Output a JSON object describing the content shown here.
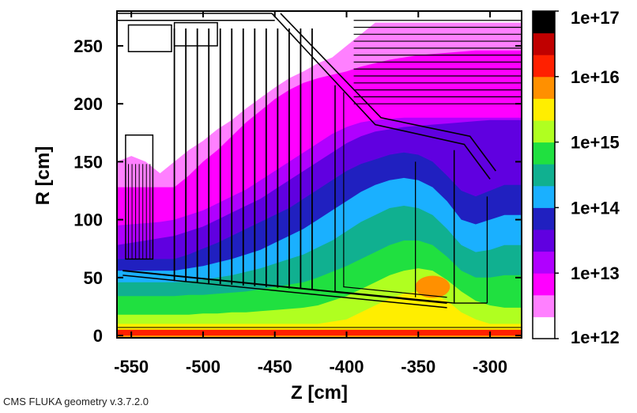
{
  "chart_data": {
    "type": "heatmap",
    "title": "",
    "xlabel": "Z [cm]",
    "ylabel": "R [cm]",
    "xlim": [
      -560,
      -278
    ],
    "ylim": [
      -2,
      280
    ],
    "x_ticks": [
      -550,
      -500,
      -450,
      -400,
      -350,
      -300
    ],
    "x_tick_labels": [
      "-550",
      "-500",
      "-450",
      "-400",
      "-350",
      "-300"
    ],
    "y_ticks": [
      0,
      50,
      100,
      150,
      200,
      250
    ],
    "y_tick_labels": [
      "0",
      "50",
      "100",
      "150",
      "200",
      "250"
    ],
    "grid": false,
    "colorbar": {
      "scale": "log",
      "range": [
        1000000000000.0,
        1e+17
      ],
      "tick_labels": [
        "1e+17",
        "1e+16",
        "1e+15",
        "1e+14",
        "1e+13",
        "1e+12"
      ],
      "colors_low_to_high": [
        "#ffffff",
        "#ff80ff",
        "#ff00ff",
        "#b000ff",
        "#6000e0",
        "#2020c0",
        "#1ab0ff",
        "#10b090",
        "#20e040",
        "#b0ff20",
        "#ffee00",
        "#ff9000",
        "#ff2000",
        "#c00000",
        "#000000"
      ]
    },
    "band_levels_low_to_high": [
      0,
      1,
      2,
      3,
      4,
      5,
      6,
      7,
      8,
      9,
      10,
      11
    ],
    "boundaries_z": [
      -560,
      -550,
      -540,
      -530,
      -520,
      -510,
      -500,
      -490,
      -480,
      -470,
      -460,
      -450,
      -440,
      -430,
      -420,
      -410,
      -400,
      -390,
      -380,
      -370,
      -360,
      -350,
      -340,
      -330,
      -320,
      -310,
      -300,
      -290,
      -278
    ],
    "contour_boundaries_R": [
      [
        150,
        155,
        150,
        140,
        150,
        160,
        168,
        178,
        186,
        196,
        205,
        214,
        222,
        228,
        235,
        240,
        250,
        260,
        270,
        270,
        270,
        270,
        270,
        270,
        270,
        270,
        270,
        270,
        270
      ],
      [
        128,
        128,
        128,
        128,
        128,
        138,
        150,
        160,
        172,
        184,
        194,
        204,
        212,
        218,
        222,
        225,
        228,
        232,
        235,
        238,
        240,
        242,
        243,
        244,
        245,
        246,
        246,
        246,
        246
      ],
      [
        95,
        96,
        97,
        98,
        100,
        104,
        108,
        114,
        120,
        126,
        134,
        142,
        150,
        158,
        166,
        174,
        180,
        184,
        186,
        187,
        188,
        188,
        188,
        188,
        188,
        188,
        188,
        188,
        188
      ],
      [
        78,
        80,
        82,
        84,
        86,
        90,
        94,
        100,
        106,
        112,
        118,
        126,
        134,
        142,
        150,
        158,
        166,
        172,
        176,
        178,
        180,
        181,
        182,
        183,
        184,
        185,
        186,
        186,
        186
      ],
      [
        66,
        66,
        66,
        66,
        66,
        70,
        75,
        80,
        86,
        92,
        98,
        104,
        110,
        118,
        126,
        134,
        142,
        148,
        152,
        156,
        158,
        156,
        150,
        138,
        125,
        120,
        125,
        130,
        130
      ],
      [
        56,
        56,
        56,
        56,
        56,
        58,
        60,
        63,
        66,
        70,
        74,
        80,
        86,
        92,
        100,
        108,
        116,
        124,
        130,
        134,
        136,
        134,
        128,
        116,
        100,
        96,
        100,
        104,
        104
      ],
      [
        46,
        46,
        46,
        46,
        46,
        47,
        48,
        50,
        52,
        55,
        58,
        62,
        66,
        70,
        76,
        82,
        90,
        98,
        104,
        110,
        112,
        110,
        104,
        92,
        78,
        72,
        74,
        78,
        78
      ],
      [
        34,
        34,
        34,
        34,
        34,
        35,
        35,
        36,
        37,
        38,
        40,
        42,
        44,
        46,
        50,
        55,
        60,
        66,
        72,
        78,
        82,
        82,
        78,
        68,
        56,
        50,
        50,
        52,
        52
      ],
      [
        18,
        18,
        18,
        18,
        18,
        18,
        19,
        19,
        20,
        20,
        21,
        22,
        23,
        24,
        26,
        30,
        34,
        40,
        46,
        52,
        56,
        58,
        56,
        48,
        38,
        30,
        26,
        24,
        24
      ],
      [
        10,
        10,
        10,
        10,
        10,
        10,
        10,
        10,
        10,
        10,
        10,
        10,
        10,
        10,
        10,
        12,
        14,
        20,
        26,
        32,
        36,
        38,
        36,
        30,
        20,
        14,
        10,
        10,
        10
      ],
      [
        3,
        3,
        3,
        3,
        3,
        3,
        3,
        3,
        3,
        3,
        3,
        3,
        3,
        3,
        3,
        3,
        3,
        3,
        3,
        3,
        3,
        3,
        3,
        3,
        3,
        3,
        3,
        3,
        3
      ]
    ]
  },
  "footer": {
    "text": "CMS FLUKA geometry v.3.7.2.0"
  }
}
